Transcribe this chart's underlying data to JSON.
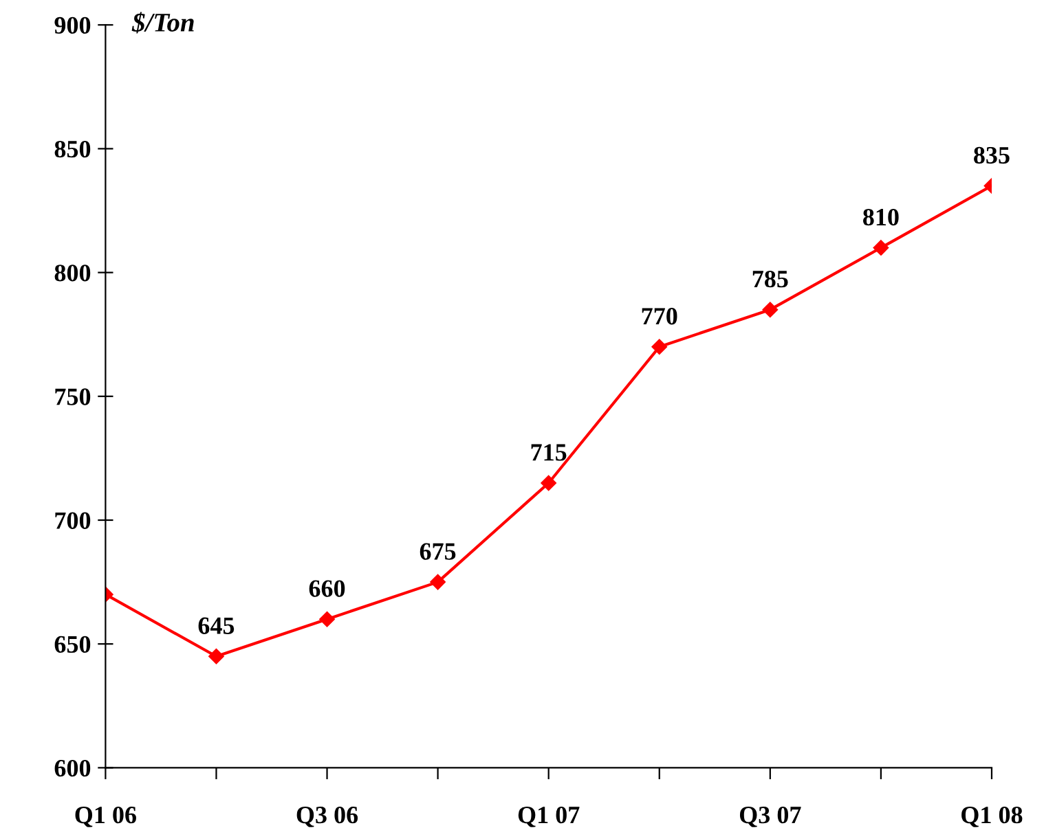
{
  "chart_data": {
    "type": "line",
    "ylabel": "$/Ton",
    "categories": [
      "Q1 06",
      null,
      "Q3 06",
      null,
      "Q1 07",
      null,
      "Q3 07",
      null,
      "Q1 08"
    ],
    "series": [
      {
        "color": "#ff0000",
        "values": [
          670,
          645,
          660,
          675,
          715,
          770,
          785,
          810,
          835
        ],
        "value_labels": [
          null,
          "645",
          "660",
          "675",
          "715",
          "770",
          "785",
          "810",
          "835"
        ]
      }
    ],
    "ylim": [
      600,
      900
    ],
    "yticks": [
      600,
      650,
      700,
      750,
      800,
      850,
      900
    ],
    "grid": false,
    "marker": "diamond",
    "line_style": "solid"
  }
}
